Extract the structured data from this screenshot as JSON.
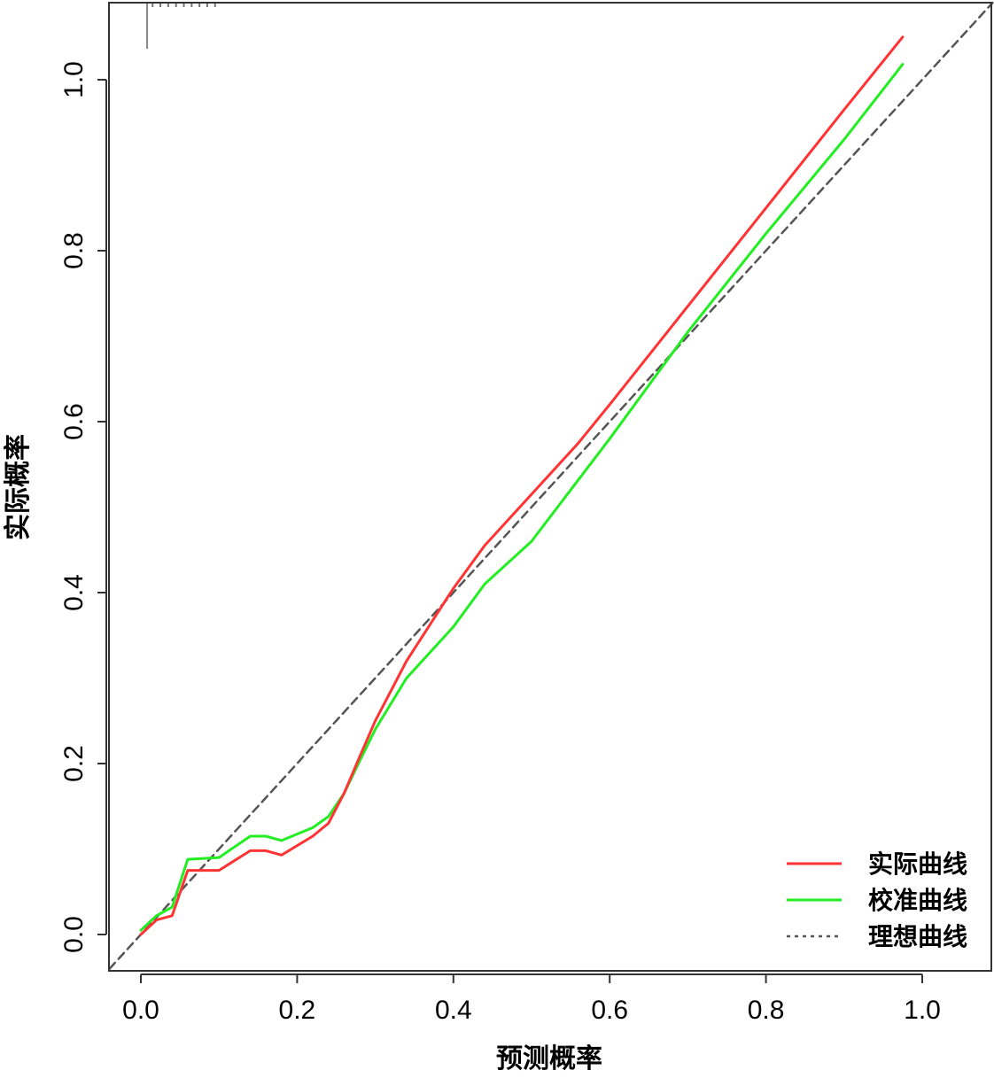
{
  "chart_data": {
    "type": "line",
    "xlabel": "预测概率",
    "ylabel": "实际概率",
    "xlim": [
      -0.04,
      1.09
    ],
    "ylim": [
      -0.04,
      1.09
    ],
    "x_ticks": [
      "0.0",
      "0.2",
      "0.4",
      "0.6",
      "0.8",
      "1.0"
    ],
    "y_ticks": [
      "0.0",
      "0.2",
      "0.4",
      "0.6",
      "0.8",
      "1.0"
    ],
    "grid": false,
    "legend_position": "bottom-right",
    "series": [
      {
        "name": "实际曲线",
        "color": "#ff3333",
        "style": "solid",
        "points": [
          [
            0.0,
            0.0
          ],
          [
            0.02,
            0.017
          ],
          [
            0.04,
            0.022
          ],
          [
            0.06,
            0.075
          ],
          [
            0.1,
            0.075
          ],
          [
            0.14,
            0.098
          ],
          [
            0.16,
            0.098
          ],
          [
            0.18,
            0.093
          ],
          [
            0.22,
            0.115
          ],
          [
            0.24,
            0.13
          ],
          [
            0.26,
            0.165
          ],
          [
            0.28,
            0.208
          ],
          [
            0.3,
            0.25
          ],
          [
            0.34,
            0.32
          ],
          [
            0.4,
            0.405
          ],
          [
            0.44,
            0.455
          ],
          [
            0.5,
            0.515
          ],
          [
            0.56,
            0.575
          ],
          [
            0.6,
            0.62
          ],
          [
            0.7,
            0.735
          ],
          [
            0.8,
            0.85
          ],
          [
            0.9,
            0.965
          ],
          [
            0.975,
            1.05
          ]
        ]
      },
      {
        "name": "校准曲线",
        "color": "#22ee22",
        "style": "solid",
        "points": [
          [
            0.0,
            0.005
          ],
          [
            0.02,
            0.022
          ],
          [
            0.04,
            0.032
          ],
          [
            0.06,
            0.088
          ],
          [
            0.1,
            0.09
          ],
          [
            0.14,
            0.115
          ],
          [
            0.16,
            0.115
          ],
          [
            0.18,
            0.11
          ],
          [
            0.22,
            0.125
          ],
          [
            0.24,
            0.138
          ],
          [
            0.26,
            0.165
          ],
          [
            0.28,
            0.203
          ],
          [
            0.3,
            0.24
          ],
          [
            0.34,
            0.3
          ],
          [
            0.4,
            0.36
          ],
          [
            0.44,
            0.41
          ],
          [
            0.5,
            0.46
          ],
          [
            0.6,
            0.58
          ],
          [
            0.7,
            0.705
          ],
          [
            0.8,
            0.82
          ],
          [
            0.9,
            0.93
          ],
          [
            0.975,
            1.018
          ]
        ]
      },
      {
        "name": "理想曲线",
        "color": "#555555",
        "style": "dashed",
        "points": [
          [
            -0.04,
            -0.04
          ],
          [
            1.09,
            1.09
          ]
        ]
      }
    ],
    "rug_top": {
      "line_x": 0.008,
      "marks_x": [
        0.015,
        0.025,
        0.035,
        0.045,
        0.055,
        0.065,
        0.075,
        0.085,
        0.095
      ]
    }
  }
}
